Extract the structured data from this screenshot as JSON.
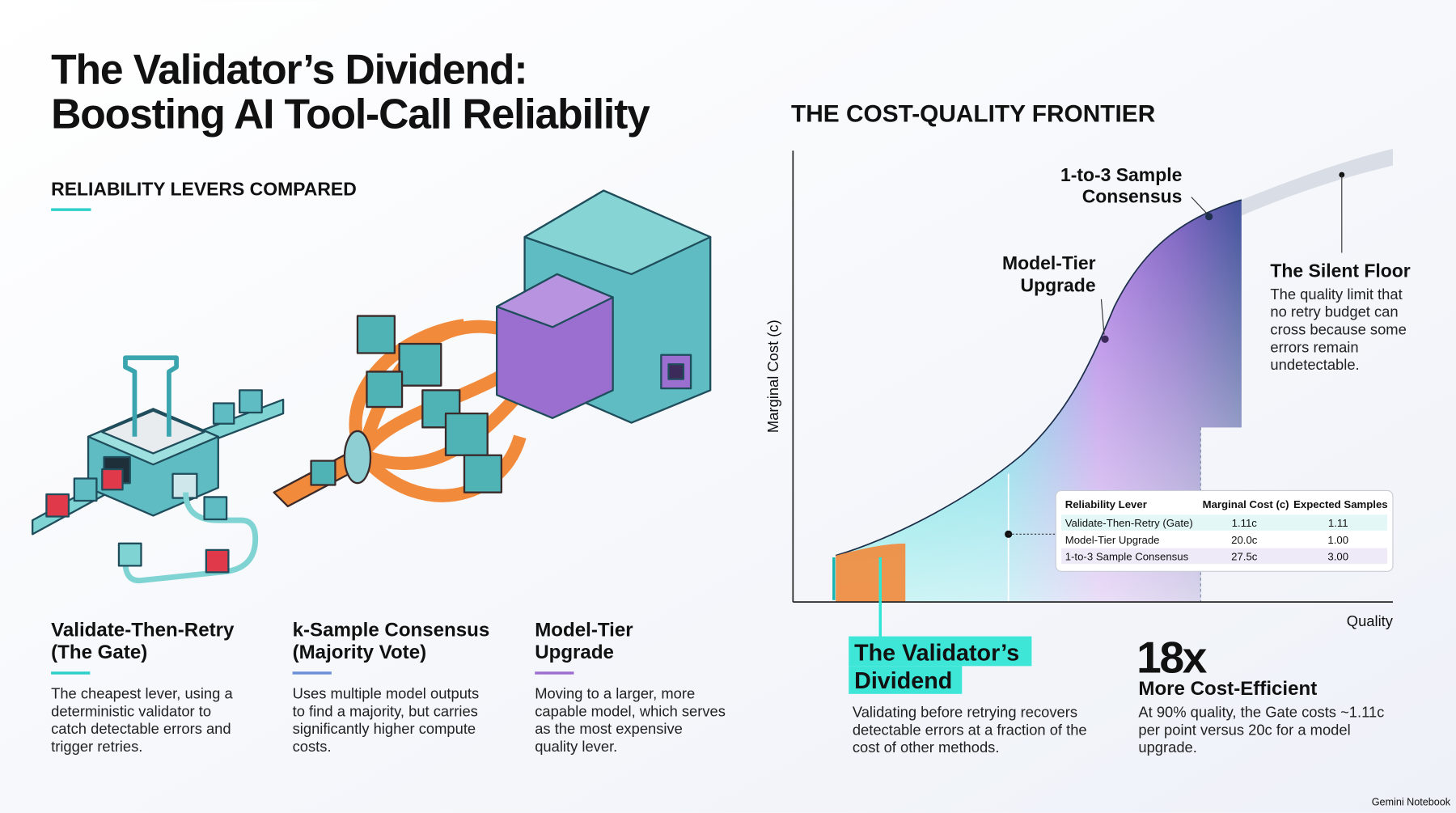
{
  "header": {
    "title": [
      "The Validator’s Dividend:",
      "Boosting AI Tool-Call Reliability"
    ]
  },
  "levers": {
    "heading": "RELIABILITY LEVERS COMPARED",
    "items": [
      {
        "title": [
          "Validate-Then-Retry",
          "(The Gate)"
        ],
        "description": [
          "The cheapest lever, using a",
          "deterministic validator to",
          "catch detectable errors and",
          "trigger retries."
        ]
      },
      {
        "title": [
          "k-Sample Consensus",
          "(Majority Vote)"
        ],
        "description": [
          "Uses multiple model outputs",
          "to find a majority, but carries",
          "significantly higher compute",
          "costs."
        ]
      },
      {
        "title": [
          "Model-Tier",
          "Upgrade"
        ],
        "description": [
          "Moving to a larger, more",
          "capable model, which serves",
          "as the most expensive",
          "quality lever."
        ]
      }
    ]
  },
  "frontier": {
    "heading": "THE COST-QUALITY FRONTIER",
    "y_label": "Marginal Cost (c)",
    "x_label": "Quality",
    "annotations": {
      "consensus": [
        "1-to-3 Sample",
        "Consensus"
      ],
      "upgrade": [
        "Model-Tier",
        "Upgrade"
      ],
      "floor_title": "The Silent Floor",
      "floor_text": [
        "The quality limit that",
        "no retry budget can",
        "cross because some",
        "errors remain",
        "undetectable."
      ]
    },
    "table": {
      "columns": [
        "Reliability Lever",
        "Marginal Cost (c)",
        "Expected Samples"
      ],
      "rows": [
        [
          "Validate-Then-Retry (Gate)",
          "1.11c",
          "1.11"
        ],
        [
          "Model-Tier Upgrade",
          "20.0c",
          "1.00"
        ],
        [
          "1-to-3 Sample Consensus",
          "27.5c",
          "3.00"
        ]
      ]
    }
  },
  "callout": {
    "title": [
      "The Validator’s",
      "Dividend"
    ],
    "text": [
      "Validating before retrying recovers",
      "detectable errors at a fraction of the",
      "cost of other methods."
    ]
  },
  "stat": {
    "value": "18x",
    "label": "More Cost-Efficient",
    "text": [
      "At 90% quality, the Gate costs ~1.11c",
      "per point versus 20c for a model",
      "upgrade."
    ]
  },
  "footer": "Gemini Notebook"
}
